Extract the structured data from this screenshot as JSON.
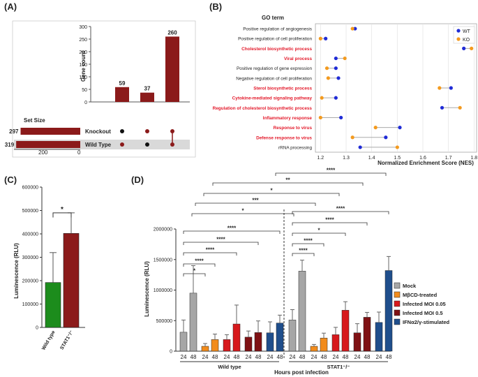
{
  "panels": {
    "a": "(A)",
    "b": "(B)",
    "c": "(C)",
    "d": "(D)"
  },
  "colors": {
    "darkred": "#8b1a1a",
    "wt": "#1f2bd6",
    "ko": "#f39a1e",
    "red": "#e3192a",
    "grey": "#a6a6a6",
    "orange": "#f28c1c",
    "brightred": "#d7191c",
    "maroon": "#7f1114",
    "blue": "#1f4e8c",
    "green": "#1c8c1c"
  },
  "chart_data": [
    {
      "id": "A",
      "type": "bar",
      "title": "",
      "ylabel": "Gene count",
      "ylim": [
        0,
        300
      ],
      "yticks": [
        0,
        50,
        100,
        150,
        200,
        250,
        300
      ],
      "values": [
        59,
        37,
        260
      ],
      "value_labels": [
        "59",
        "37",
        "260"
      ],
      "intersections": [
        [
          false,
          true
        ],
        [
          true,
          false
        ],
        [
          true,
          true
        ]
      ],
      "sets": [
        {
          "name": "Knockout",
          "size": 297
        },
        {
          "name": "Wild Type",
          "size": 319
        }
      ],
      "set_size_title": "Set Size",
      "set_size_ticks": [
        "200",
        "0"
      ]
    },
    {
      "id": "B",
      "type": "scatter",
      "title": "GO term",
      "xlabel": "Normalized Enrichment Score (NES)",
      "xlim": [
        1.18,
        1.81
      ],
      "xticks": [
        1.2,
        1.3,
        1.4,
        1.5,
        1.6,
        1.7,
        1.8
      ],
      "legend": [
        "WT",
        "KO"
      ],
      "terms": [
        {
          "name": "Positive regulation of angiogenesis",
          "highlight": false,
          "wt": 1.335,
          "ko": 1.325
        },
        {
          "name": "Positive regulation of cell proliferation",
          "highlight": false,
          "wt": 1.22,
          "ko": 1.2
        },
        {
          "name": "Cholesterol biosynthetic process",
          "highlight": true,
          "wt": 1.76,
          "ko": 1.79
        },
        {
          "name": "Viral process",
          "highlight": true,
          "wt": 1.26,
          "ko": 1.295
        },
        {
          "name": "Positive regulation of gene expression",
          "highlight": false,
          "wt": 1.26,
          "ko": 1.225
        },
        {
          "name": "Negative regulation of cell proliferation",
          "highlight": false,
          "wt": 1.27,
          "ko": 1.23
        },
        {
          "name": "Sterol biosynthetic process",
          "highlight": true,
          "wt": 1.71,
          "ko": 1.665
        },
        {
          "name": "Cytokine-mediated signaling pathway",
          "highlight": true,
          "wt": 1.26,
          "ko": 1.205
        },
        {
          "name": "Regulation of cholesterol biosynthetic process",
          "highlight": true,
          "wt": 1.675,
          "ko": 1.745
        },
        {
          "name": "Inflammatory response",
          "highlight": true,
          "wt": 1.28,
          "ko": 1.2
        },
        {
          "name": "Response to virus",
          "highlight": true,
          "wt": 1.51,
          "ko": 1.415
        },
        {
          "name": "Defense response to virus",
          "highlight": true,
          "wt": 1.455,
          "ko": 1.325
        },
        {
          "name": "rRNA processing",
          "highlight": false,
          "wt": 1.355,
          "ko": 1.5
        }
      ]
    },
    {
      "id": "C",
      "type": "bar",
      "ylabel": "Luminescence (RLU)",
      "ylim": [
        0,
        600000
      ],
      "yticks": [
        0,
        100000,
        200000,
        300000,
        400000,
        500000,
        600000
      ],
      "categories": [
        "Wild type",
        "STAT1⁻/⁻"
      ],
      "values": [
        192000,
        402000
      ],
      "errors": [
        128000,
        88000
      ],
      "significance": "*"
    },
    {
      "id": "D",
      "type": "bar",
      "ylabel": "Luminescence (RLU)",
      "xlabel": "Hours post infection",
      "ylim": [
        0,
        2000000
      ],
      "yticks": [
        0,
        500000,
        1000000,
        1500000,
        2000000
      ],
      "ytick_labels": [
        "0",
        "500000",
        "1000000",
        "1500000",
        "2000000"
      ],
      "legend": [
        "Mock",
        "MβCD-treated",
        "Infected MOI 0.05",
        "Infected MOI 0.5",
        "IFNα2/γ-stimulated"
      ],
      "group_names": [
        "Wild type",
        "STAT1⁻/⁻"
      ],
      "hour_labels": [
        "24",
        "48"
      ],
      "series": [
        {
          "name": "Mock",
          "wt": [
            310000,
            950000
          ],
          "ko": [
            510000,
            1310000
          ],
          "wt_err": [
            200000,
            450000
          ],
          "ko_err": [
            170000,
            180000
          ]
        },
        {
          "name": "MβCD-treated",
          "wt": [
            80000,
            190000
          ],
          "ko": [
            80000,
            215000
          ],
          "wt_err": [
            45000,
            90000
          ],
          "ko_err": [
            30000,
            80000
          ]
        },
        {
          "name": "Infected MOI 0.05",
          "wt": [
            190000,
            445000
          ],
          "ko": [
            270000,
            670000
          ],
          "wt_err": [
            80000,
            310000
          ],
          "ko_err": [
            120000,
            140000
          ]
        },
        {
          "name": "Infected MOI 0.5",
          "wt": [
            230000,
            305000
          ],
          "ko": [
            300000,
            555000
          ],
          "wt_err": [
            100000,
            190000
          ],
          "ko_err": [
            150000,
            80000
          ]
        },
        {
          "name": "IFNα2/γ-stimulated",
          "wt": [
            300000,
            460000
          ],
          "ko": [
            470000,
            1320000
          ],
          "wt_err": [
            180000,
            130000
          ],
          "ko_err": [
            170000,
            230000
          ]
        }
      ],
      "significance_wt": [
        "*",
        "****",
        "****",
        "****",
        "****"
      ],
      "significance_ko": [
        "****",
        "****",
        "*",
        "****",
        "****"
      ],
      "significance_between": [
        "*",
        "***",
        "*",
        "**",
        "****"
      ]
    }
  ]
}
